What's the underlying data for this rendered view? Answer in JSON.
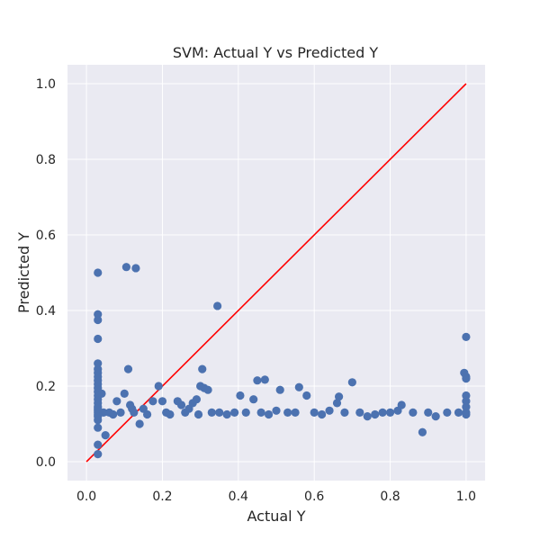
{
  "chart_data": {
    "type": "scatter",
    "title": "SVM: Actual Y vs Predicted Y",
    "xlabel": "Actual Y",
    "ylabel": "Predicted Y",
    "xlim": [
      -0.05,
      1.05
    ],
    "ylim": [
      -0.05,
      1.05
    ],
    "x_ticks": [
      0.0,
      0.2,
      0.4,
      0.6,
      0.8,
      1.0
    ],
    "y_ticks": [
      0.0,
      0.2,
      0.4,
      0.6,
      0.8,
      1.0
    ],
    "x_tick_labels": [
      "0.0",
      "0.2",
      "0.4",
      "0.6",
      "0.8",
      "1.0"
    ],
    "y_tick_labels": [
      "0.0",
      "0.2",
      "0.4",
      "0.6",
      "0.8",
      "1.0"
    ],
    "grid": true,
    "colors": {
      "background": "#EAEAF2",
      "grid": "#FFFFFF",
      "points": "#4C72B0",
      "reference_line": "#FF0000"
    },
    "reference_line": {
      "name": "y = x",
      "x": [
        0.0,
        1.0
      ],
      "y": [
        0.0,
        1.0
      ]
    },
    "series": [
      {
        "name": "predictions",
        "points": [
          [
            0.03,
            0.5
          ],
          [
            0.03,
            0.39
          ],
          [
            0.03,
            0.375
          ],
          [
            0.03,
            0.325
          ],
          [
            0.03,
            0.26
          ],
          [
            0.03,
            0.245
          ],
          [
            0.03,
            0.235
          ],
          [
            0.03,
            0.225
          ],
          [
            0.03,
            0.215
          ],
          [
            0.03,
            0.205
          ],
          [
            0.03,
            0.195
          ],
          [
            0.03,
            0.185
          ],
          [
            0.03,
            0.175
          ],
          [
            0.03,
            0.165
          ],
          [
            0.03,
            0.155
          ],
          [
            0.03,
            0.145
          ],
          [
            0.03,
            0.14
          ],
          [
            0.03,
            0.135
          ],
          [
            0.03,
            0.13
          ],
          [
            0.03,
            0.125
          ],
          [
            0.03,
            0.12
          ],
          [
            0.03,
            0.11
          ],
          [
            0.03,
            0.09
          ],
          [
            0.03,
            0.045
          ],
          [
            0.03,
            0.02
          ],
          [
            0.04,
            0.18
          ],
          [
            0.045,
            0.13
          ],
          [
            0.05,
            0.07
          ],
          [
            0.06,
            0.13
          ],
          [
            0.07,
            0.125
          ],
          [
            0.08,
            0.16
          ],
          [
            0.09,
            0.13
          ],
          [
            0.1,
            0.18
          ],
          [
            0.105,
            0.515
          ],
          [
            0.11,
            0.245
          ],
          [
            0.115,
            0.15
          ],
          [
            0.12,
            0.14
          ],
          [
            0.125,
            0.13
          ],
          [
            0.13,
            0.512
          ],
          [
            0.14,
            0.1
          ],
          [
            0.15,
            0.14
          ],
          [
            0.16,
            0.125
          ],
          [
            0.175,
            0.16
          ],
          [
            0.19,
            0.2
          ],
          [
            0.2,
            0.16
          ],
          [
            0.21,
            0.13
          ],
          [
            0.22,
            0.125
          ],
          [
            0.24,
            0.16
          ],
          [
            0.25,
            0.15
          ],
          [
            0.26,
            0.13
          ],
          [
            0.27,
            0.14
          ],
          [
            0.28,
            0.155
          ],
          [
            0.29,
            0.165
          ],
          [
            0.295,
            0.125
          ],
          [
            0.3,
            0.2
          ],
          [
            0.305,
            0.245
          ],
          [
            0.31,
            0.195
          ],
          [
            0.32,
            0.19
          ],
          [
            0.33,
            0.13
          ],
          [
            0.345,
            0.412
          ],
          [
            0.35,
            0.13
          ],
          [
            0.37,
            0.125
          ],
          [
            0.39,
            0.13
          ],
          [
            0.405,
            0.175
          ],
          [
            0.42,
            0.13
          ],
          [
            0.44,
            0.165
          ],
          [
            0.45,
            0.215
          ],
          [
            0.46,
            0.13
          ],
          [
            0.47,
            0.217
          ],
          [
            0.48,
            0.125
          ],
          [
            0.5,
            0.135
          ],
          [
            0.51,
            0.19
          ],
          [
            0.53,
            0.13
          ],
          [
            0.55,
            0.13
          ],
          [
            0.56,
            0.197
          ],
          [
            0.58,
            0.175
          ],
          [
            0.6,
            0.13
          ],
          [
            0.62,
            0.125
          ],
          [
            0.64,
            0.135
          ],
          [
            0.66,
            0.155
          ],
          [
            0.665,
            0.172
          ],
          [
            0.68,
            0.13
          ],
          [
            0.7,
            0.21
          ],
          [
            0.72,
            0.13
          ],
          [
            0.74,
            0.12
          ],
          [
            0.76,
            0.125
          ],
          [
            0.78,
            0.13
          ],
          [
            0.8,
            0.13
          ],
          [
            0.82,
            0.135
          ],
          [
            0.83,
            0.15
          ],
          [
            0.86,
            0.13
          ],
          [
            0.885,
            0.078
          ],
          [
            0.9,
            0.13
          ],
          [
            0.92,
            0.12
          ],
          [
            0.95,
            0.13
          ],
          [
            0.98,
            0.13
          ],
          [
            1.0,
            0.33
          ],
          [
            0.995,
            0.235
          ],
          [
            1.0,
            0.22
          ],
          [
            1.0,
            0.225
          ],
          [
            1.0,
            0.175
          ],
          [
            1.0,
            0.16
          ],
          [
            1.0,
            0.145
          ],
          [
            1.0,
            0.13
          ],
          [
            1.0,
            0.125
          ]
        ]
      }
    ]
  }
}
